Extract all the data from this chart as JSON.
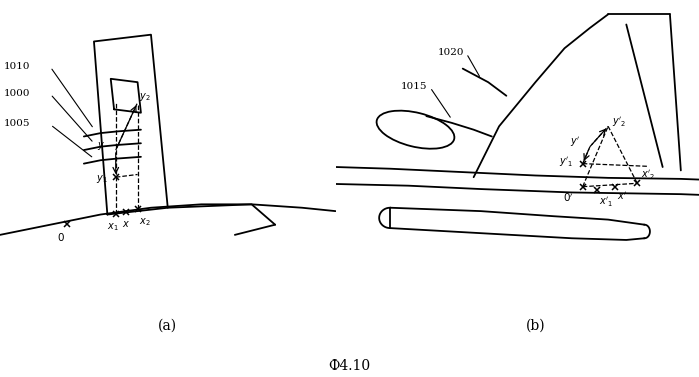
{
  "bg_color": "#ffffff",
  "line_color": "#000000",
  "fig_label": "Ф4.10",
  "lw": 1.3
}
